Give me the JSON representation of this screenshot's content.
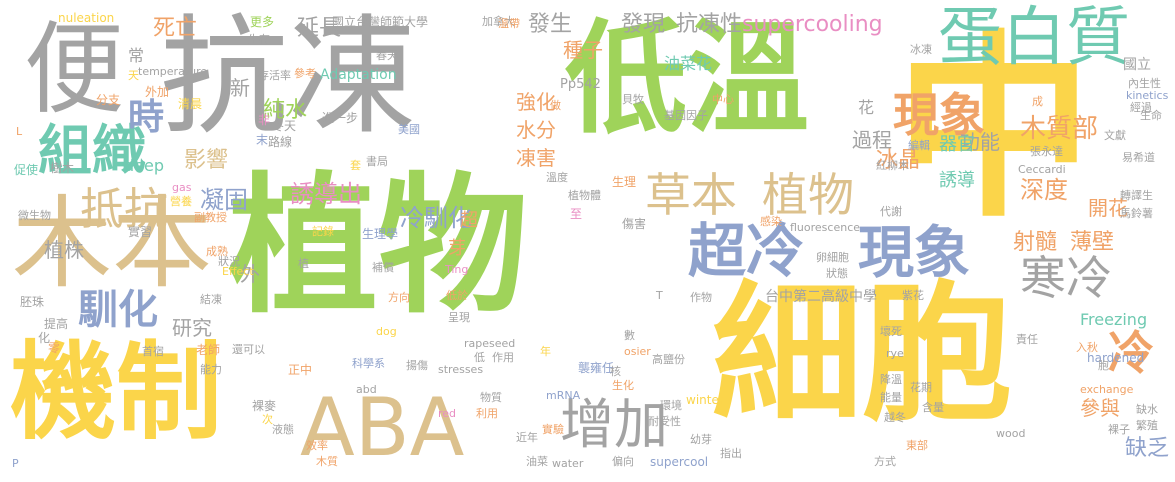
{
  "palette": {
    "green": "#9fd35a",
    "yellow": "#fbd54a",
    "tan": "#dcc18d",
    "gray": "#a3a3a3",
    "teal": "#6fcab1",
    "blue": "#8fa2cc",
    "pink": "#e98ec3",
    "orange": "#f0a368"
  },
  "words": [
    {
      "t": "植物",
      "c": "#9fd35a",
      "v": false
    },
    {
      "t": "中",
      "c": "#fbd54a",
      "v": false
    },
    {
      "t": "細胞",
      "c": "#fbd54a",
      "v": false
    },
    {
      "t": "抗凍",
      "c": "#a3a3a3",
      "v": false
    },
    {
      "t": "低溫",
      "c": "#9fd35a",
      "v": false
    },
    {
      "t": "木本",
      "c": "#dcc18d",
      "v": false
    },
    {
      "t": "便",
      "c": "#a3a3a3",
      "v": false
    },
    {
      "t": "機制",
      "c": "#fbd54a",
      "v": false
    },
    {
      "t": "ABA",
      "c": "#dcc18d",
      "v": false
    },
    {
      "t": "蛋白質",
      "c": "#6fcab1",
      "v": false
    },
    {
      "t": "組織",
      "c": "#6fcab1",
      "v": false
    },
    {
      "t": "超冷",
      "c": "#8fa2cc",
      "v": false
    },
    {
      "t": "現象",
      "c": "#8fa2cc",
      "v": false
    },
    {
      "t": "草本",
      "c": "#dcc18d",
      "v": false
    },
    {
      "t": "植物",
      "c": "#dcc18d",
      "v": false
    },
    {
      "t": "增加",
      "c": "#a3a3a3",
      "v": false
    },
    {
      "t": "寒冷",
      "c": "#a3a3a3",
      "v": false
    },
    {
      "t": "現象",
      "c": "#f0a368",
      "v": false
    },
    {
      "t": "冷",
      "c": "#f0a368",
      "v": false
    },
    {
      "t": "抵抗",
      "c": "#dcc18d",
      "v": false
    },
    {
      "t": "時",
      "c": "#8fa2cc",
      "v": false
    },
    {
      "t": "馴化",
      "c": "#8fa2cc",
      "v": false
    },
    {
      "t": "supercooling",
      "c": "#e98ec3",
      "v": false
    },
    {
      "t": "冰晶",
      "c": "#f0a368",
      "v": false
    },
    {
      "t": "木質部",
      "c": "#f0a368",
      "v": false
    },
    {
      "t": "凝固",
      "c": "#8fa2cc",
      "v": false
    },
    {
      "t": "冷馴化",
      "c": "#8fa2cc",
      "v": false
    },
    {
      "t": "誘導出",
      "c": "#e98ec3",
      "v": false
    },
    {
      "t": "深度",
      "c": "#f0a368",
      "v": false
    },
    {
      "t": "射髓",
      "c": "#f0a368",
      "v": false
    },
    {
      "t": "薄壁",
      "c": "#f0a368",
      "v": false
    },
    {
      "t": "純水",
      "c": "#9fd35a",
      "v": false
    },
    {
      "t": "延長",
      "c": "#a3a3a3",
      "v": false
    },
    {
      "t": "發生",
      "c": "#a3a3a3",
      "v": false
    },
    {
      "t": "發現",
      "c": "#a3a3a3",
      "v": false
    },
    {
      "t": "抗凍性",
      "c": "#a3a3a3",
      "v": false
    },
    {
      "t": "種子",
      "c": "#f0a368",
      "v": false
    },
    {
      "t": "死亡",
      "c": "#f0a368",
      "v": false
    },
    {
      "t": "油菜花",
      "c": "#6fcab1",
      "v": false
    },
    {
      "t": "影響",
      "c": "#dcc18d",
      "v": false
    },
    {
      "t": "植株",
      "c": "#a3a3a3",
      "v": false
    },
    {
      "t": "研究",
      "c": "#a3a3a3",
      "v": false
    },
    {
      "t": "功能",
      "c": "#a3a3a3",
      "v": false
    },
    {
      "t": "過程",
      "c": "#a3a3a3",
      "v": false
    },
    {
      "t": "器官",
      "c": "#6fcab1",
      "v": false
    },
    {
      "t": "誘導",
      "c": "#6fcab1",
      "v": false
    },
    {
      "t": "開花",
      "c": "#f0a368",
      "v": false
    },
    {
      "t": "凍害",
      "c": "#f0a368",
      "v": false
    },
    {
      "t": "強化",
      "c": "#f0a368",
      "v": false
    },
    {
      "t": "水分",
      "c": "#f0a368",
      "v": false
    },
    {
      "t": "缺乏",
      "c": "#8fa2cc",
      "v": false
    },
    {
      "t": "參與",
      "c": "#f0a368",
      "v": false
    },
    {
      "t": "deep",
      "c": "#6fcab1",
      "v": false
    },
    {
      "t": "Adaptation",
      "c": "#6fcab1",
      "v": false
    },
    {
      "t": "Freezing",
      "c": "#6fcab1",
      "v": false
    },
    {
      "t": "hardened",
      "c": "#8fa2cc",
      "v": false
    },
    {
      "t": "Pp542",
      "c": "#a3a3a3",
      "v": false
    },
    {
      "t": "國立",
      "c": "#a3a3a3",
      "v": false
    },
    {
      "t": "國立台灣師範大學",
      "c": "#a3a3a3",
      "v": false
    },
    {
      "t": "台中第二高級中學",
      "c": "#a3a3a3",
      "v": false
    },
    {
      "t": "外",
      "c": "#a3a3a3",
      "v": false
    },
    {
      "t": "超",
      "c": "#f0a368",
      "v": false
    },
    {
      "t": "芽",
      "c": "#f0a368",
      "v": false
    },
    {
      "t": "花",
      "c": "#a3a3a3",
      "v": false
    },
    {
      "t": "新",
      "c": "#a3a3a3",
      "v": false
    },
    {
      "t": "常",
      "c": "#a3a3a3",
      "v": false
    },
    {
      "t": "更多",
      "c": "#9fd35a",
      "v": false
    },
    {
      "t": "生存",
      "c": "#a3a3a3",
      "v": false
    },
    {
      "t": "存活率",
      "c": "#a3a3a3",
      "v": false
    },
    {
      "t": "參考",
      "c": "#f0a368",
      "v": false
    },
    {
      "t": "nuleation",
      "c": "#fbd54a",
      "v": false
    },
    {
      "t": "temperature",
      "c": "#a3a3a3",
      "v": false
    },
    {
      "t": "外加",
      "c": "#f0a368",
      "v": false
    },
    {
      "t": "天",
      "c": "#fbd54a",
      "v": false
    },
    {
      "t": "清晨",
      "c": "#fbd54a",
      "v": false
    },
    {
      "t": "分支",
      "c": "#f0a368",
      "v": false
    },
    {
      "t": "非",
      "c": "#e98ec3",
      "v": false
    },
    {
      "t": "末",
      "c": "#8fa2cc",
      "v": false
    },
    {
      "t": "冬天",
      "c": "#a3a3a3",
      "v": false
    },
    {
      "t": "進一步",
      "c": "#a3a3a3",
      "v": false
    },
    {
      "t": "路線",
      "c": "#a3a3a3",
      "v": false
    },
    {
      "t": "美國",
      "c": "#8fa2cc",
      "v": false
    },
    {
      "t": "書局",
      "c": "#a3a3a3",
      "v": false
    },
    {
      "t": "套",
      "c": "#fbd54a",
      "v": false
    },
    {
      "t": "促使",
      "c": "#6fcab1",
      "v": false
    },
    {
      "t": "樹木",
      "c": "#a3a3a3",
      "v": false
    },
    {
      "t": "gas",
      "c": "#e98ec3",
      "v": false
    },
    {
      "t": "微生物",
      "c": "#a3a3a3",
      "v": false
    },
    {
      "t": "營養",
      "c": "#fbd54a",
      "v": false
    },
    {
      "t": "副教授",
      "c": "#f0a368",
      "v": false
    },
    {
      "t": "記錄",
      "c": "#fbd54a",
      "v": false
    },
    {
      "t": "實習",
      "c": "#a3a3a3",
      "v": false
    },
    {
      "t": "成熟",
      "c": "#f0a368",
      "v": false
    },
    {
      "t": "狀況",
      "c": "#a3a3a3",
      "v": false
    },
    {
      "t": "Effect",
      "c": "#fbd54a",
      "v": false
    },
    {
      "t": "胚珠",
      "c": "#a3a3a3",
      "v": false
    },
    {
      "t": "結凍",
      "c": "#a3a3a3",
      "v": false
    },
    {
      "t": "提高",
      "c": "#a3a3a3",
      "v": false
    },
    {
      "t": "化",
      "c": "#a3a3a3",
      "v": false
    },
    {
      "t": "零",
      "c": "#f0a368",
      "v": false
    },
    {
      "t": "首宿",
      "c": "#a3a3a3",
      "v": false
    },
    {
      "t": "老師",
      "c": "#f0a368",
      "v": false
    },
    {
      "t": "還可以",
      "c": "#a3a3a3",
      "v": false
    },
    {
      "t": "能力",
      "c": "#a3a3a3",
      "v": false
    },
    {
      "t": "生理學",
      "c": "#8fa2cc",
      "v": false
    },
    {
      "t": "植",
      "c": "#a3a3a3",
      "v": false
    },
    {
      "t": "補償",
      "c": "#a3a3a3",
      "v": false
    },
    {
      "t": "Ting",
      "c": "#e98ec3",
      "v": false
    },
    {
      "t": "方向",
      "c": "#f0a368",
      "v": false
    },
    {
      "t": "低於",
      "c": "#f0a368",
      "v": false
    },
    {
      "t": "呈現",
      "c": "#a3a3a3",
      "v": false
    },
    {
      "t": "dog",
      "c": "#fbd54a",
      "v": false
    },
    {
      "t": "rapeseed",
      "c": "#a3a3a3",
      "v": false
    },
    {
      "t": "科學系",
      "c": "#8fa2cc",
      "v": false
    },
    {
      "t": "揚傷",
      "c": "#a3a3a3",
      "v": false
    },
    {
      "t": "低",
      "c": "#a3a3a3",
      "v": false
    },
    {
      "t": "作用",
      "c": "#a3a3a3",
      "v": false
    },
    {
      "t": "stresses",
      "c": "#a3a3a3",
      "v": false
    },
    {
      "t": "正中",
      "c": "#f0a368",
      "v": false
    },
    {
      "t": "abd",
      "c": "#a3a3a3",
      "v": false
    },
    {
      "t": "物質",
      "c": "#a3a3a3",
      "v": false
    },
    {
      "t": "裸麥",
      "c": "#a3a3a3",
      "v": false
    },
    {
      "t": "次",
      "c": "#fbd54a",
      "v": false
    },
    {
      "t": "液態",
      "c": "#a3a3a3",
      "v": false
    },
    {
      "t": "red",
      "c": "#e98ec3",
      "v": false
    },
    {
      "t": "利用",
      "c": "#f0a368",
      "v": false
    },
    {
      "t": "mRNA",
      "c": "#8fa2cc",
      "v": false
    },
    {
      "t": "近年",
      "c": "#a3a3a3",
      "v": false
    },
    {
      "t": "效率",
      "c": "#f0a368",
      "v": false
    },
    {
      "t": "實驗",
      "c": "#f0a368",
      "v": false
    },
    {
      "t": "木質",
      "c": "#f0a368",
      "v": false
    },
    {
      "t": "油菜",
      "c": "#a3a3a3",
      "v": false
    },
    {
      "t": "water",
      "c": "#a3a3a3",
      "v": false
    },
    {
      "t": "偏向",
      "c": "#a3a3a3",
      "v": false
    },
    {
      "t": "supercool",
      "c": "#8fa2cc",
      "v": false
    },
    {
      "t": "指出",
      "c": "#a3a3a3",
      "v": false
    },
    {
      "t": "耐受性",
      "c": "#a3a3a3",
      "v": false
    },
    {
      "t": "幼芽",
      "c": "#a3a3a3",
      "v": false
    },
    {
      "t": "環境",
      "c": "#a3a3a3",
      "v": false
    },
    {
      "t": "winter",
      "c": "#fbd54a",
      "v": false
    },
    {
      "t": "生化",
      "c": "#f0a368",
      "v": false
    },
    {
      "t": "年",
      "c": "#fbd54a",
      "v": false
    },
    {
      "t": "數",
      "c": "#a3a3a3",
      "v": false
    },
    {
      "t": "襲雍任",
      "c": "#8fa2cc",
      "v": false
    },
    {
      "t": "高鹽份",
      "c": "#a3a3a3",
      "v": false
    },
    {
      "t": "osier",
      "c": "#f0a368",
      "v": false
    },
    {
      "t": "核",
      "c": "#a3a3a3",
      "v": false
    },
    {
      "t": "作物",
      "c": "#a3a3a3",
      "v": false
    },
    {
      "t": "T",
      "c": "#a3a3a3",
      "v": false
    },
    {
      "t": "傷害",
      "c": "#a3a3a3",
      "v": false
    },
    {
      "t": "生理",
      "c": "#f0a368",
      "v": false
    },
    {
      "t": "植物體",
      "c": "#a3a3a3",
      "v": false
    },
    {
      "t": "至",
      "c": "#e98ec3",
      "v": false
    },
    {
      "t": "溫度",
      "c": "#a3a3a3",
      "v": false
    },
    {
      "t": "基因因子",
      "c": "#a3a3a3",
      "v": false
    },
    {
      "t": "貝牧",
      "c": "#a3a3a3",
      "v": false
    },
    {
      "t": "做",
      "c": "#f0a368",
      "v": false
    },
    {
      "t": "中心",
      "c": "#f0a368",
      "v": false
    },
    {
      "t": "加拿大",
      "c": "#a3a3a3",
      "v": false
    },
    {
      "t": "溫帶",
      "c": "#f0a368",
      "v": false
    },
    {
      "t": "春天",
      "c": "#a3a3a3",
      "v": false
    },
    {
      "t": "冰凍",
      "c": "#a3a3a3",
      "v": false
    },
    {
      "t": "成",
      "c": "#f0a368",
      "v": false
    },
    {
      "t": "經過",
      "c": "#a3a3a3",
      "v": false
    },
    {
      "t": "內生性",
      "c": "#a3a3a3",
      "v": false
    },
    {
      "t": "kinetics",
      "c": "#8fa2cc",
      "v": false
    },
    {
      "t": "生命",
      "c": "#a3a3a3",
      "v": false
    },
    {
      "t": "文獻",
      "c": "#a3a3a3",
      "v": false
    },
    {
      "t": "編輯",
      "c": "#8fa2cc",
      "v": false
    },
    {
      "t": "張永達",
      "c": "#a3a3a3",
      "v": false
    },
    {
      "t": "Ceccardi",
      "c": "#a3a3a3",
      "v": false
    },
    {
      "t": "紅柳木",
      "c": "#a3a3a3",
      "v": false
    },
    {
      "t": "易希道",
      "c": "#a3a3a3",
      "v": false
    },
    {
      "t": "轉譯生",
      "c": "#a3a3a3",
      "v": false
    },
    {
      "t": "馬鈴薯",
      "c": "#a3a3a3",
      "v": false
    },
    {
      "t": "代謝",
      "c": "#a3a3a3",
      "v": false
    },
    {
      "t": "感染",
      "c": "#f0a368",
      "v": false
    },
    {
      "t": "fluorescence",
      "c": "#a3a3a3",
      "v": false
    },
    {
      "t": "卵細胞",
      "c": "#a3a3a3",
      "v": false
    },
    {
      "t": "狀態",
      "c": "#a3a3a3",
      "v": false
    },
    {
      "t": "紫花",
      "c": "#a3a3a3",
      "v": false
    },
    {
      "t": "壞死",
      "c": "#a3a3a3",
      "v": false
    },
    {
      "t": "責任",
      "c": "#a3a3a3",
      "v": false
    },
    {
      "t": "rye",
      "c": "#a3a3a3",
      "v": false
    },
    {
      "t": "入秋",
      "c": "#f0a368",
      "v": false
    },
    {
      "t": "降溫",
      "c": "#a3a3a3",
      "v": false
    },
    {
      "t": "exchange",
      "c": "#f0a368",
      "v": false
    },
    {
      "t": "花期",
      "c": "#a3a3a3",
      "v": false
    },
    {
      "t": "能量",
      "c": "#a3a3a3",
      "v": false
    },
    {
      "t": "越冬",
      "c": "#a3a3a3",
      "v": false
    },
    {
      "t": "含量",
      "c": "#a3a3a3",
      "v": false
    },
    {
      "t": "缺水",
      "c": "#a3a3a3",
      "v": false
    },
    {
      "t": "繁殖",
      "c": "#a3a3a3",
      "v": false
    },
    {
      "t": "裸子",
      "c": "#a3a3a3",
      "v": false
    },
    {
      "t": "wood",
      "c": "#a3a3a3",
      "v": false
    },
    {
      "t": "東部",
      "c": "#f0a368",
      "v": false
    },
    {
      "t": "方式",
      "c": "#a3a3a3",
      "v": false
    },
    {
      "t": "P",
      "c": "#8fa2cc",
      "v": false
    },
    {
      "t": "L",
      "c": "#f0a368",
      "v": false
    },
    {
      "t": "胞",
      "c": "#a3a3a3",
      "v": false
    }
  ]
}
